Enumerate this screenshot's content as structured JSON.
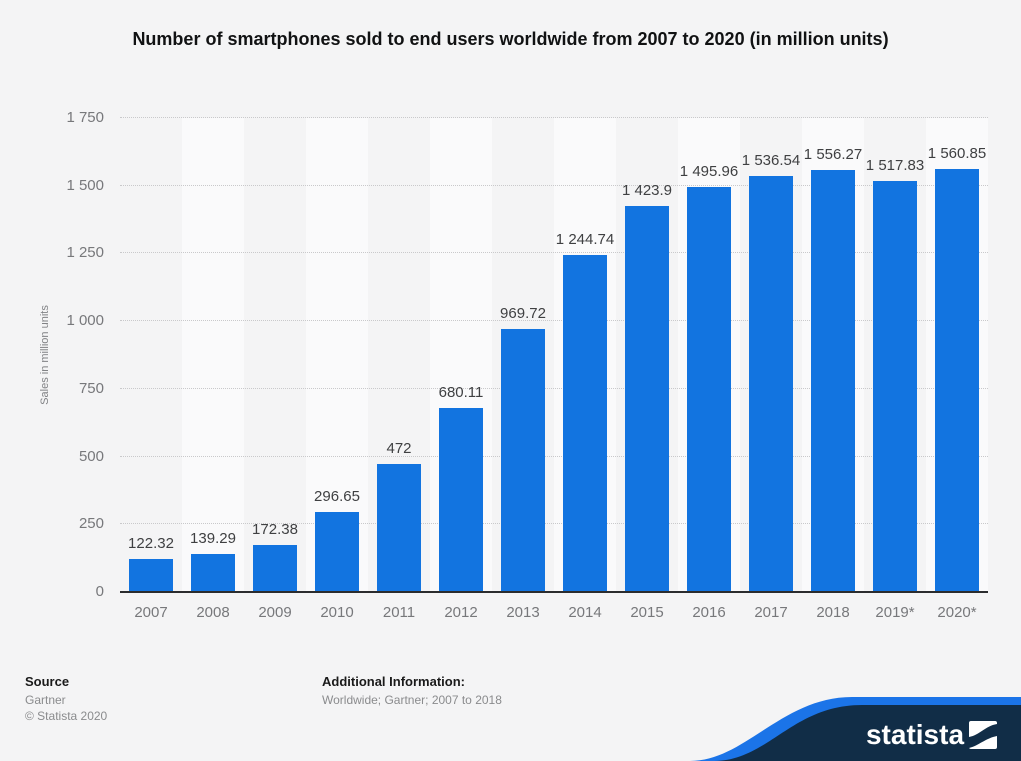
{
  "title": "Number of smartphones sold to end users worldwide from 2007 to 2020 (in million units)",
  "chart_data": {
    "type": "bar",
    "categories": [
      "2007",
      "2008",
      "2009",
      "2010",
      "2011",
      "2012",
      "2013",
      "2014",
      "2015",
      "2016",
      "2017",
      "2018",
      "2019*",
      "2020*"
    ],
    "values": [
      122.32,
      139.29,
      172.38,
      296.65,
      472,
      680.11,
      969.72,
      1244.74,
      1423.9,
      1495.96,
      1536.54,
      1556.27,
      1517.83,
      1560.85
    ],
    "value_labels": [
      "122.32",
      "139.29",
      "172.38",
      "296.65",
      "472",
      "680.11",
      "969.72",
      "1 244.74",
      "1 423.9",
      "1 495.96",
      "1 536.54",
      "1 556.27",
      "1 517.83",
      "1 560.85"
    ],
    "title": "Number of smartphones sold to end users worldwide from 2007 to 2020 (in million units)",
    "xlabel": "",
    "ylabel": "Sales in million units",
    "ylim": [
      0,
      1750
    ],
    "ytick_interval": 250,
    "ytick_labels": [
      "0",
      "250",
      "500",
      "750",
      "1 000",
      "1 250",
      "1 500",
      "1 750"
    ],
    "grid": "horizontal-dotted",
    "legend": "none",
    "bar_color": "#1274e0"
  },
  "footer": {
    "source_heading": "Source",
    "source_name": "Gartner",
    "copyright": "© Statista 2020",
    "additional_heading": "Additional Information:",
    "additional_text": "Worldwide; Gartner; 2007 to 2018"
  },
  "branding": {
    "logo_text": "statista",
    "banner_navy": "#112d47",
    "banner_blue": "#1b74e8"
  },
  "colors": {
    "background": "#f4f4f5",
    "column_stripe": "#fafafb",
    "bar": "#1274e0",
    "gridline": "#c9c9cb",
    "axis_line": "#2b2c2e",
    "axis_text": "#77787b",
    "value_label_text": "#3f4042"
  }
}
